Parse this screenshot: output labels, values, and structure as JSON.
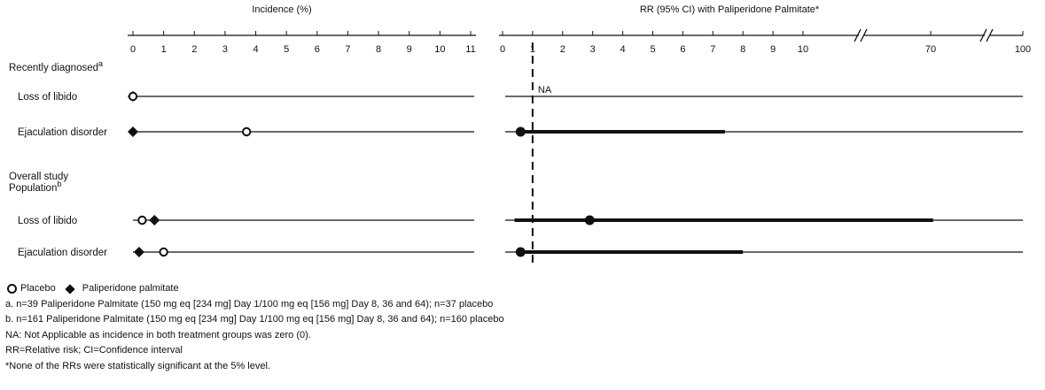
{
  "chart_data": [
    {
      "type": "dot-plot",
      "title": "Incidence  (%)",
      "xlim": [
        0,
        11
      ],
      "ticks": [
        "0",
        "1",
        "2",
        "3",
        "4",
        "5",
        "6",
        "7",
        "8",
        "9",
        "10",
        "11"
      ],
      "series": [
        {
          "name": "Placebo",
          "marker": "open-circle"
        },
        {
          "name": "Paliperidone palmitate",
          "marker": "filled-diamond"
        }
      ],
      "groups": [
        {
          "label": "Recently diagnosed",
          "label_sup": "a",
          "rows": [
            {
              "label": "Loss of libido",
              "placebo": 0,
              "paliperidone": 0
            },
            {
              "label": "Ejaculation disorder",
              "placebo": 3.7,
              "paliperidone": 0
            }
          ]
        },
        {
          "label": "Overall study\nPopulation",
          "label_sup": "b",
          "rows": [
            {
              "label": "Loss of libido",
              "placebo": 0.3,
              "paliperidone": 0.7
            },
            {
              "label": "Ejaculation disorder",
              "placebo": 1.0,
              "paliperidone": 0.2
            }
          ]
        }
      ]
    },
    {
      "type": "forest",
      "title": "RR (95% CI) with Paliperidone Palmitate*",
      "xscale": "broken",
      "ticks": [
        "0",
        "1",
        "2",
        "3",
        "4",
        "5",
        "6",
        "7",
        "8",
        "9",
        "10",
        "70",
        "100"
      ],
      "reference_line": 1,
      "rows": [
        {
          "label": "Loss of libido",
          "group": "Recently diagnosed",
          "rr": null,
          "ci_low": null,
          "ci_high": null,
          "annotation": "NA"
        },
        {
          "label": "Ejaculation disorder",
          "group": "Recently diagnosed",
          "rr": 0.6,
          "ci_low": 0.6,
          "ci_high": 7.4
        },
        {
          "label": "Loss of libido",
          "group": "Overall study Population",
          "rr": 2.9,
          "ci_low": 0.4,
          "ci_high": 70.8
        },
        {
          "label": "Ejaculation disorder",
          "group": "Overall study Population",
          "rr": 0.6,
          "ci_low": 0.6,
          "ci_high": 8.0
        }
      ]
    }
  ],
  "legend": {
    "placebo": "Placebo",
    "paliperidone": "Paliperidone palmitate"
  },
  "footnotes": [
    "a. n=39 Paliperidone Palmitate (150 mg eq [234 mg] Day 1/100 mg eq [156 mg] Day 8, 36 and 64); n=37 placebo",
    "b. n=161 Paliperidone Palmitate (150 mg eq [234 mg] Day 1/100 mg eq [156 mg] Day 8, 36 and 64); n=160 placebo",
    "NA: Not Applicable as incidence in both treatment groups was zero (0).",
    "RR=Relative risk; CI=Confidence interval",
    "*None of the RRs were statistically significant at the 5% level."
  ]
}
